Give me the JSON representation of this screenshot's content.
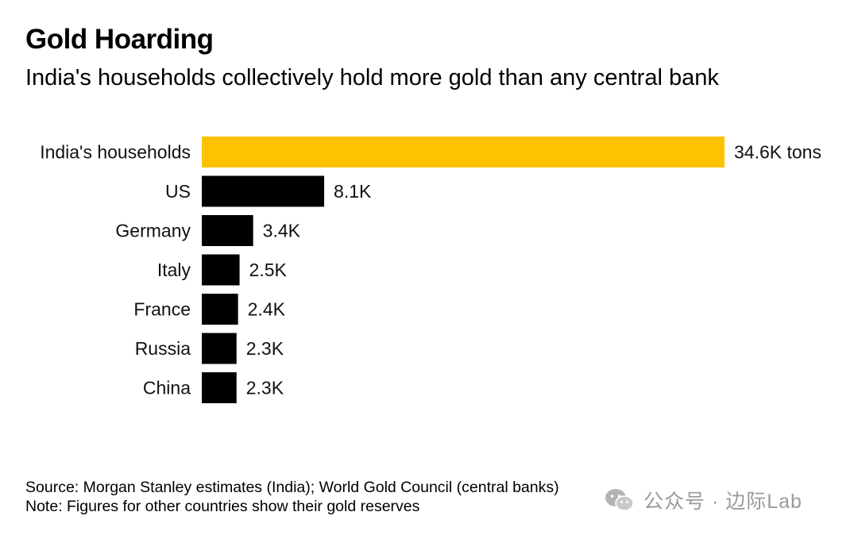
{
  "chart_data": {
    "type": "bar",
    "orientation": "horizontal",
    "title": "Gold Hoarding",
    "subtitle": "India's households collectively hold more gold than any central bank",
    "categories": [
      "India's households",
      "US",
      "Germany",
      "Italy",
      "France",
      "Russia",
      "China"
    ],
    "values": [
      34.6,
      8.1,
      3.4,
      2.5,
      2.4,
      2.3,
      2.3
    ],
    "value_labels": [
      "34.6K tons",
      "8.1K",
      "3.4K",
      "2.5K",
      "2.4K",
      "2.3K",
      "2.3K"
    ],
    "unit": "thousand tons",
    "colors": [
      "#ffc200",
      "#000000",
      "#000000",
      "#000000",
      "#000000",
      "#000000",
      "#000000"
    ],
    "xlim": [
      0,
      34.6
    ],
    "grid": false,
    "legend": "none"
  },
  "footer": {
    "source": "Source: Morgan Stanley estimates (India); World Gold Council (central banks)",
    "note": "Note: Figures for other countries show their gold reserves"
  },
  "watermark": {
    "icon": "wechat-icon",
    "text": "公众号 · 边际Lab",
    "color": "#9a9a9a"
  }
}
